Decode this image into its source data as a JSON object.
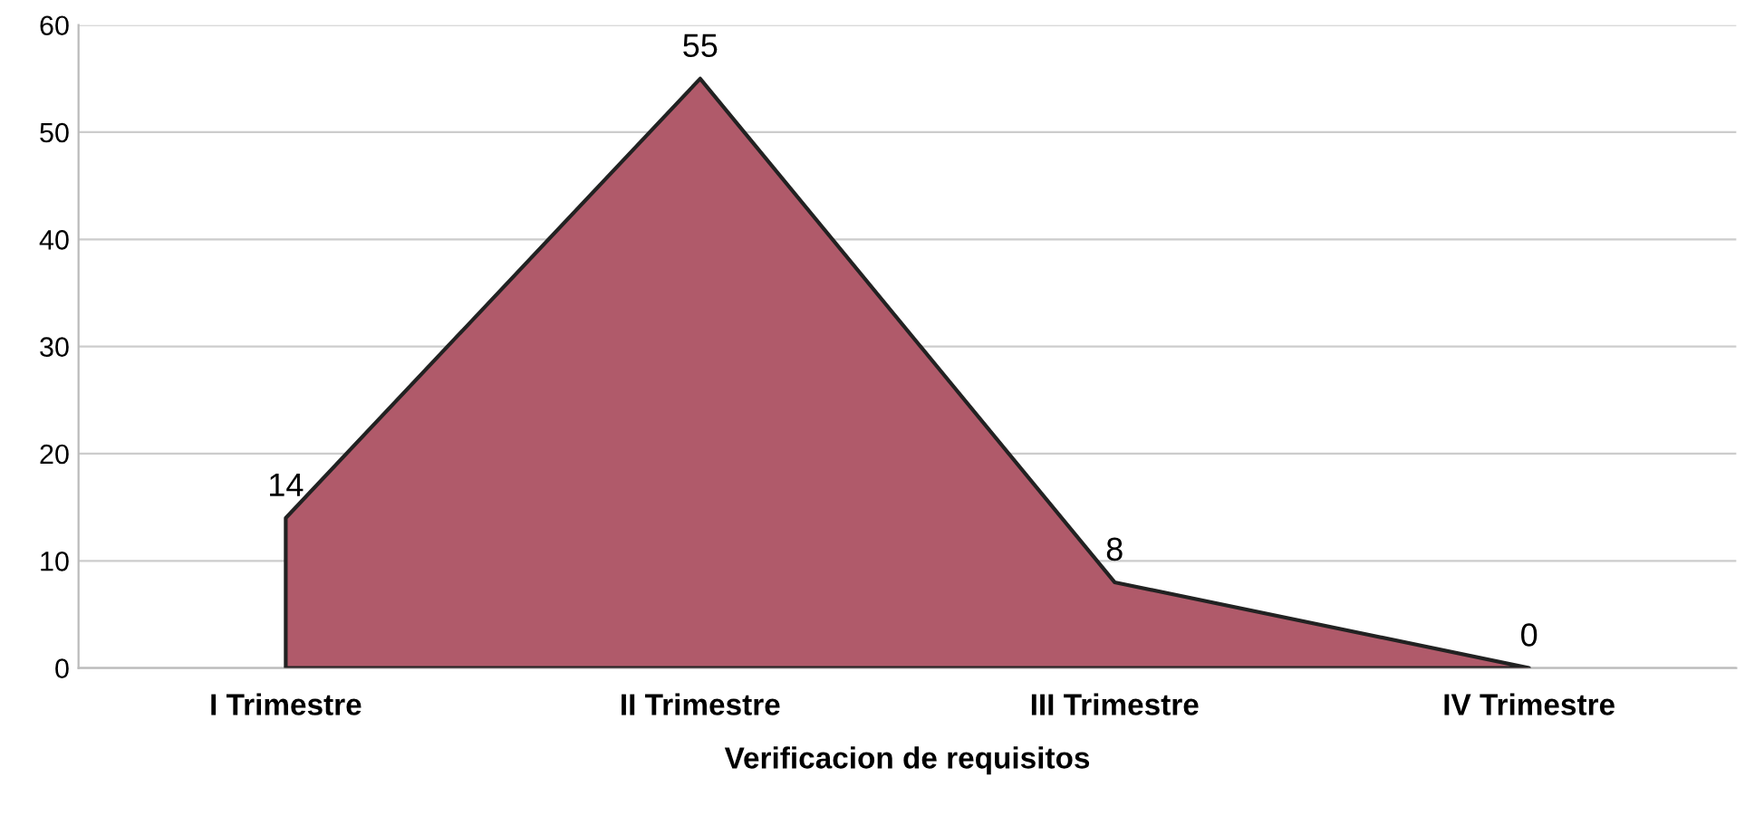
{
  "chart_data": {
    "type": "area",
    "xlabel": "Verificacion de requisitos",
    "categories": [
      "I Trimestre",
      "II Trimestre",
      "III Trimestre",
      "IV Trimestre"
    ],
    "values": [
      14,
      55,
      8,
      0
    ],
    "color": "#b05a6a",
    "ylim": [
      0,
      60
    ],
    "yticks": [
      0,
      10,
      20,
      30,
      40,
      50,
      60
    ],
    "grid": "y",
    "data_labels": true
  }
}
